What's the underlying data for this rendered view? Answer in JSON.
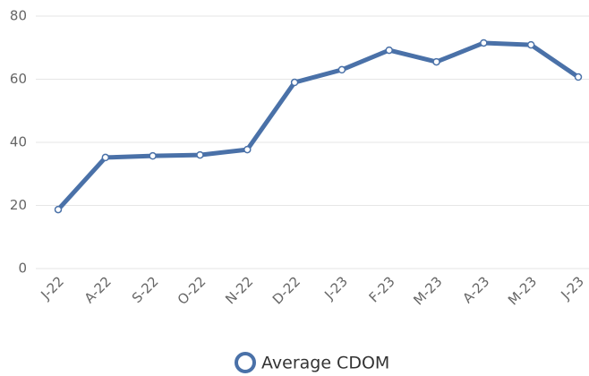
{
  "chart_data": {
    "type": "line",
    "categories": [
      "J-22",
      "A-22",
      "S-22",
      "O-22",
      "N-22",
      "D-22",
      "J-23",
      "F-23",
      "M-23",
      "A-23",
      "M-23",
      "J-23"
    ],
    "series": [
      {
        "name": "Average CDOM",
        "color": "#4a71a8",
        "values": [
          18.7,
          35.2,
          35.7,
          36.0,
          37.7,
          59.0,
          63.0,
          69.2,
          65.5,
          71.5,
          70.9,
          60.7
        ]
      }
    ],
    "ylim": [
      0,
      80
    ],
    "yticks": [
      0,
      20,
      40,
      60,
      80
    ],
    "grid": true,
    "legend": "bottom"
  }
}
